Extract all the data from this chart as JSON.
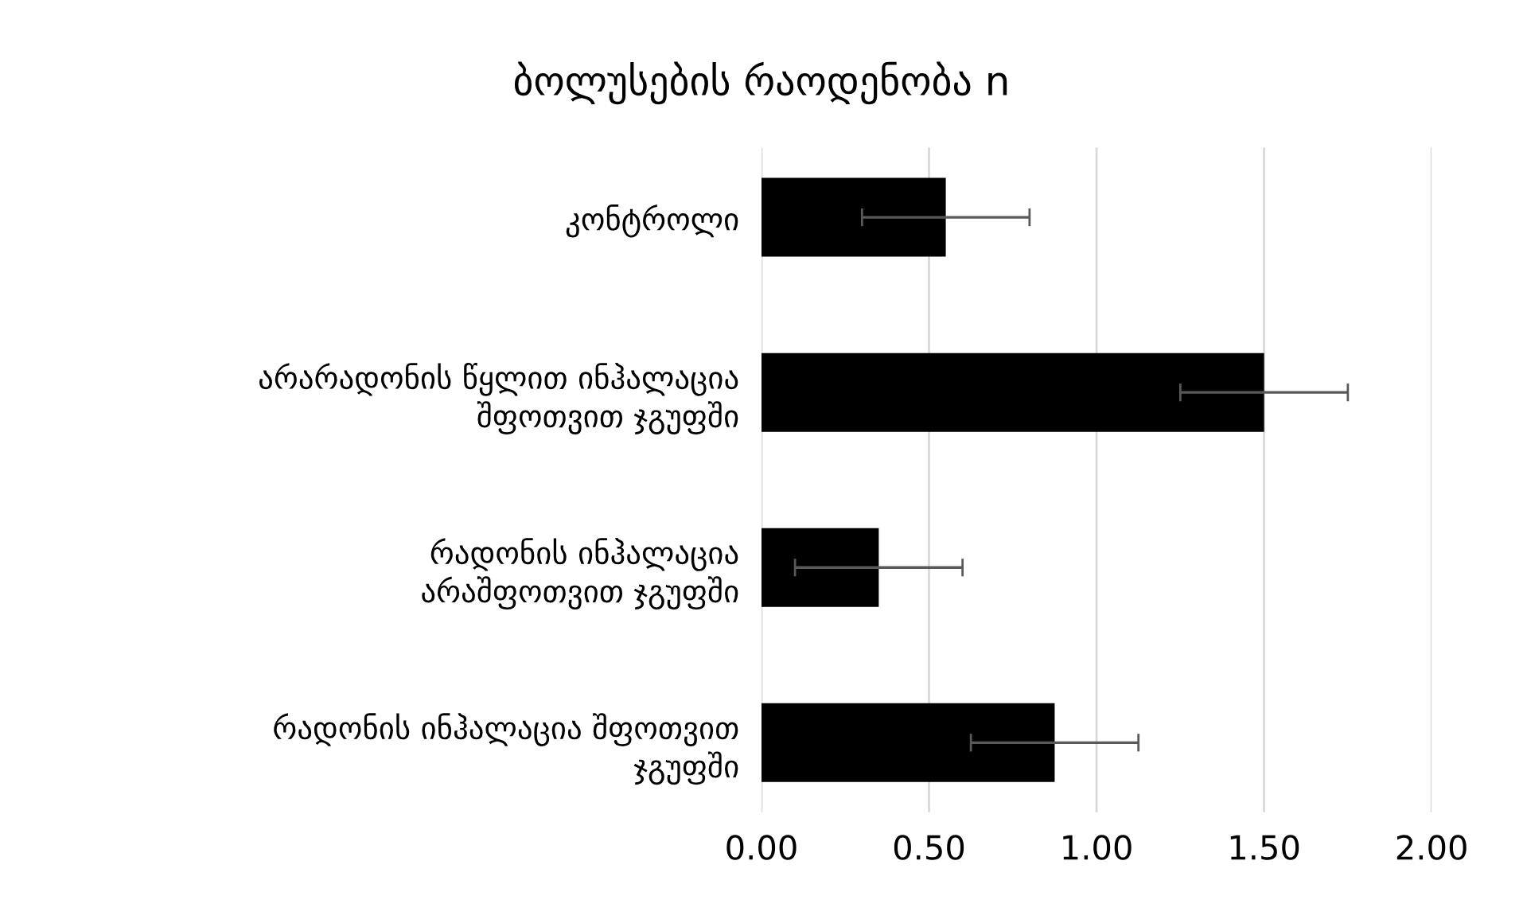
{
  "chart_data": {
    "type": "bar",
    "orientation": "horizontal",
    "title": "ბოლუსების რაოდენობა n",
    "categories": [
      "კონტროლი",
      "არარადონის წყლით ინჰალაცია\nშფოთვით ჯგუფში",
      "რადონის ინჰალაცია\nარაშფოთვით ჯგუფში",
      "რადონის ინჰალაცია შფოთვით\nჯგუფში"
    ],
    "values": [
      0.55,
      1.5,
      0.35,
      0.875
    ],
    "errors": [
      0.25,
      0.25,
      0.25,
      0.25
    ],
    "color": "#000000",
    "xlim": [
      0,
      2
    ],
    "xticks": [
      {
        "value": 0,
        "label": "0.00"
      },
      {
        "value": 0.5,
        "label": "0.50"
      },
      {
        "value": 1,
        "label": "1.00"
      },
      {
        "value": 1.5,
        "label": "1.50"
      },
      {
        "value": 2,
        "label": "2.00"
      }
    ],
    "grid": "x",
    "legend": false
  }
}
